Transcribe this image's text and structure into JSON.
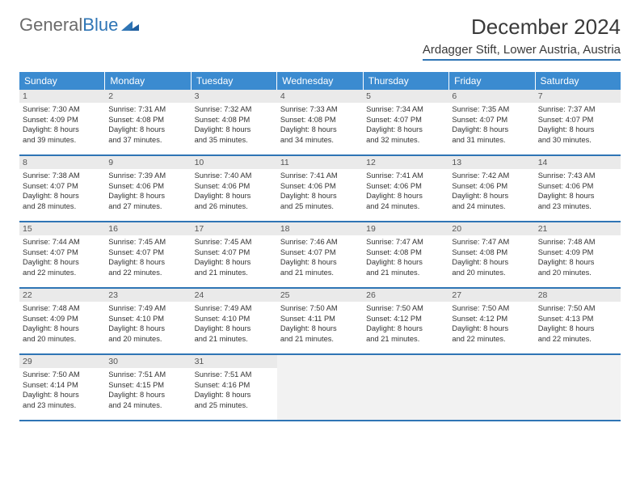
{
  "logo": {
    "part1": "General",
    "part2": "Blue"
  },
  "title": {
    "month": "December 2024",
    "location": "Ardagger Stift, Lower Austria, Austria"
  },
  "colors": {
    "header_bg": "#3b8bd0",
    "header_fg": "#ffffff",
    "rule": "#2f75b5",
    "daynum_bg": "#eaeaea",
    "text": "#333333",
    "empty_bg": "#f2f2f2"
  },
  "day_headers": [
    "Sunday",
    "Monday",
    "Tuesday",
    "Wednesday",
    "Thursday",
    "Friday",
    "Saturday"
  ],
  "weeks": [
    [
      {
        "n": "1",
        "sr": "Sunrise: 7:30 AM",
        "ss": "Sunset: 4:09 PM",
        "d1": "Daylight: 8 hours",
        "d2": "and 39 minutes."
      },
      {
        "n": "2",
        "sr": "Sunrise: 7:31 AM",
        "ss": "Sunset: 4:08 PM",
        "d1": "Daylight: 8 hours",
        "d2": "and 37 minutes."
      },
      {
        "n": "3",
        "sr": "Sunrise: 7:32 AM",
        "ss": "Sunset: 4:08 PM",
        "d1": "Daylight: 8 hours",
        "d2": "and 35 minutes."
      },
      {
        "n": "4",
        "sr": "Sunrise: 7:33 AM",
        "ss": "Sunset: 4:08 PM",
        "d1": "Daylight: 8 hours",
        "d2": "and 34 minutes."
      },
      {
        "n": "5",
        "sr": "Sunrise: 7:34 AM",
        "ss": "Sunset: 4:07 PM",
        "d1": "Daylight: 8 hours",
        "d2": "and 32 minutes."
      },
      {
        "n": "6",
        "sr": "Sunrise: 7:35 AM",
        "ss": "Sunset: 4:07 PM",
        "d1": "Daylight: 8 hours",
        "d2": "and 31 minutes."
      },
      {
        "n": "7",
        "sr": "Sunrise: 7:37 AM",
        "ss": "Sunset: 4:07 PM",
        "d1": "Daylight: 8 hours",
        "d2": "and 30 minutes."
      }
    ],
    [
      {
        "n": "8",
        "sr": "Sunrise: 7:38 AM",
        "ss": "Sunset: 4:07 PM",
        "d1": "Daylight: 8 hours",
        "d2": "and 28 minutes."
      },
      {
        "n": "9",
        "sr": "Sunrise: 7:39 AM",
        "ss": "Sunset: 4:06 PM",
        "d1": "Daylight: 8 hours",
        "d2": "and 27 minutes."
      },
      {
        "n": "10",
        "sr": "Sunrise: 7:40 AM",
        "ss": "Sunset: 4:06 PM",
        "d1": "Daylight: 8 hours",
        "d2": "and 26 minutes."
      },
      {
        "n": "11",
        "sr": "Sunrise: 7:41 AM",
        "ss": "Sunset: 4:06 PM",
        "d1": "Daylight: 8 hours",
        "d2": "and 25 minutes."
      },
      {
        "n": "12",
        "sr": "Sunrise: 7:41 AM",
        "ss": "Sunset: 4:06 PM",
        "d1": "Daylight: 8 hours",
        "d2": "and 24 minutes."
      },
      {
        "n": "13",
        "sr": "Sunrise: 7:42 AM",
        "ss": "Sunset: 4:06 PM",
        "d1": "Daylight: 8 hours",
        "d2": "and 24 minutes."
      },
      {
        "n": "14",
        "sr": "Sunrise: 7:43 AM",
        "ss": "Sunset: 4:06 PM",
        "d1": "Daylight: 8 hours",
        "d2": "and 23 minutes."
      }
    ],
    [
      {
        "n": "15",
        "sr": "Sunrise: 7:44 AM",
        "ss": "Sunset: 4:07 PM",
        "d1": "Daylight: 8 hours",
        "d2": "and 22 minutes."
      },
      {
        "n": "16",
        "sr": "Sunrise: 7:45 AM",
        "ss": "Sunset: 4:07 PM",
        "d1": "Daylight: 8 hours",
        "d2": "and 22 minutes."
      },
      {
        "n": "17",
        "sr": "Sunrise: 7:45 AM",
        "ss": "Sunset: 4:07 PM",
        "d1": "Daylight: 8 hours",
        "d2": "and 21 minutes."
      },
      {
        "n": "18",
        "sr": "Sunrise: 7:46 AM",
        "ss": "Sunset: 4:07 PM",
        "d1": "Daylight: 8 hours",
        "d2": "and 21 minutes."
      },
      {
        "n": "19",
        "sr": "Sunrise: 7:47 AM",
        "ss": "Sunset: 4:08 PM",
        "d1": "Daylight: 8 hours",
        "d2": "and 21 minutes."
      },
      {
        "n": "20",
        "sr": "Sunrise: 7:47 AM",
        "ss": "Sunset: 4:08 PM",
        "d1": "Daylight: 8 hours",
        "d2": "and 20 minutes."
      },
      {
        "n": "21",
        "sr": "Sunrise: 7:48 AM",
        "ss": "Sunset: 4:09 PM",
        "d1": "Daylight: 8 hours",
        "d2": "and 20 minutes."
      }
    ],
    [
      {
        "n": "22",
        "sr": "Sunrise: 7:48 AM",
        "ss": "Sunset: 4:09 PM",
        "d1": "Daylight: 8 hours",
        "d2": "and 20 minutes."
      },
      {
        "n": "23",
        "sr": "Sunrise: 7:49 AM",
        "ss": "Sunset: 4:10 PM",
        "d1": "Daylight: 8 hours",
        "d2": "and 20 minutes."
      },
      {
        "n": "24",
        "sr": "Sunrise: 7:49 AM",
        "ss": "Sunset: 4:10 PM",
        "d1": "Daylight: 8 hours",
        "d2": "and 21 minutes."
      },
      {
        "n": "25",
        "sr": "Sunrise: 7:50 AM",
        "ss": "Sunset: 4:11 PM",
        "d1": "Daylight: 8 hours",
        "d2": "and 21 minutes."
      },
      {
        "n": "26",
        "sr": "Sunrise: 7:50 AM",
        "ss": "Sunset: 4:12 PM",
        "d1": "Daylight: 8 hours",
        "d2": "and 21 minutes."
      },
      {
        "n": "27",
        "sr": "Sunrise: 7:50 AM",
        "ss": "Sunset: 4:12 PM",
        "d1": "Daylight: 8 hours",
        "d2": "and 22 minutes."
      },
      {
        "n": "28",
        "sr": "Sunrise: 7:50 AM",
        "ss": "Sunset: 4:13 PM",
        "d1": "Daylight: 8 hours",
        "d2": "and 22 minutes."
      }
    ],
    [
      {
        "n": "29",
        "sr": "Sunrise: 7:50 AM",
        "ss": "Sunset: 4:14 PM",
        "d1": "Daylight: 8 hours",
        "d2": "and 23 minutes."
      },
      {
        "n": "30",
        "sr": "Sunrise: 7:51 AM",
        "ss": "Sunset: 4:15 PM",
        "d1": "Daylight: 8 hours",
        "d2": "and 24 minutes."
      },
      {
        "n": "31",
        "sr": "Sunrise: 7:51 AM",
        "ss": "Sunset: 4:16 PM",
        "d1": "Daylight: 8 hours",
        "d2": "and 25 minutes."
      },
      {
        "empty": true
      },
      {
        "empty": true
      },
      {
        "empty": true
      },
      {
        "empty": true
      }
    ]
  ]
}
